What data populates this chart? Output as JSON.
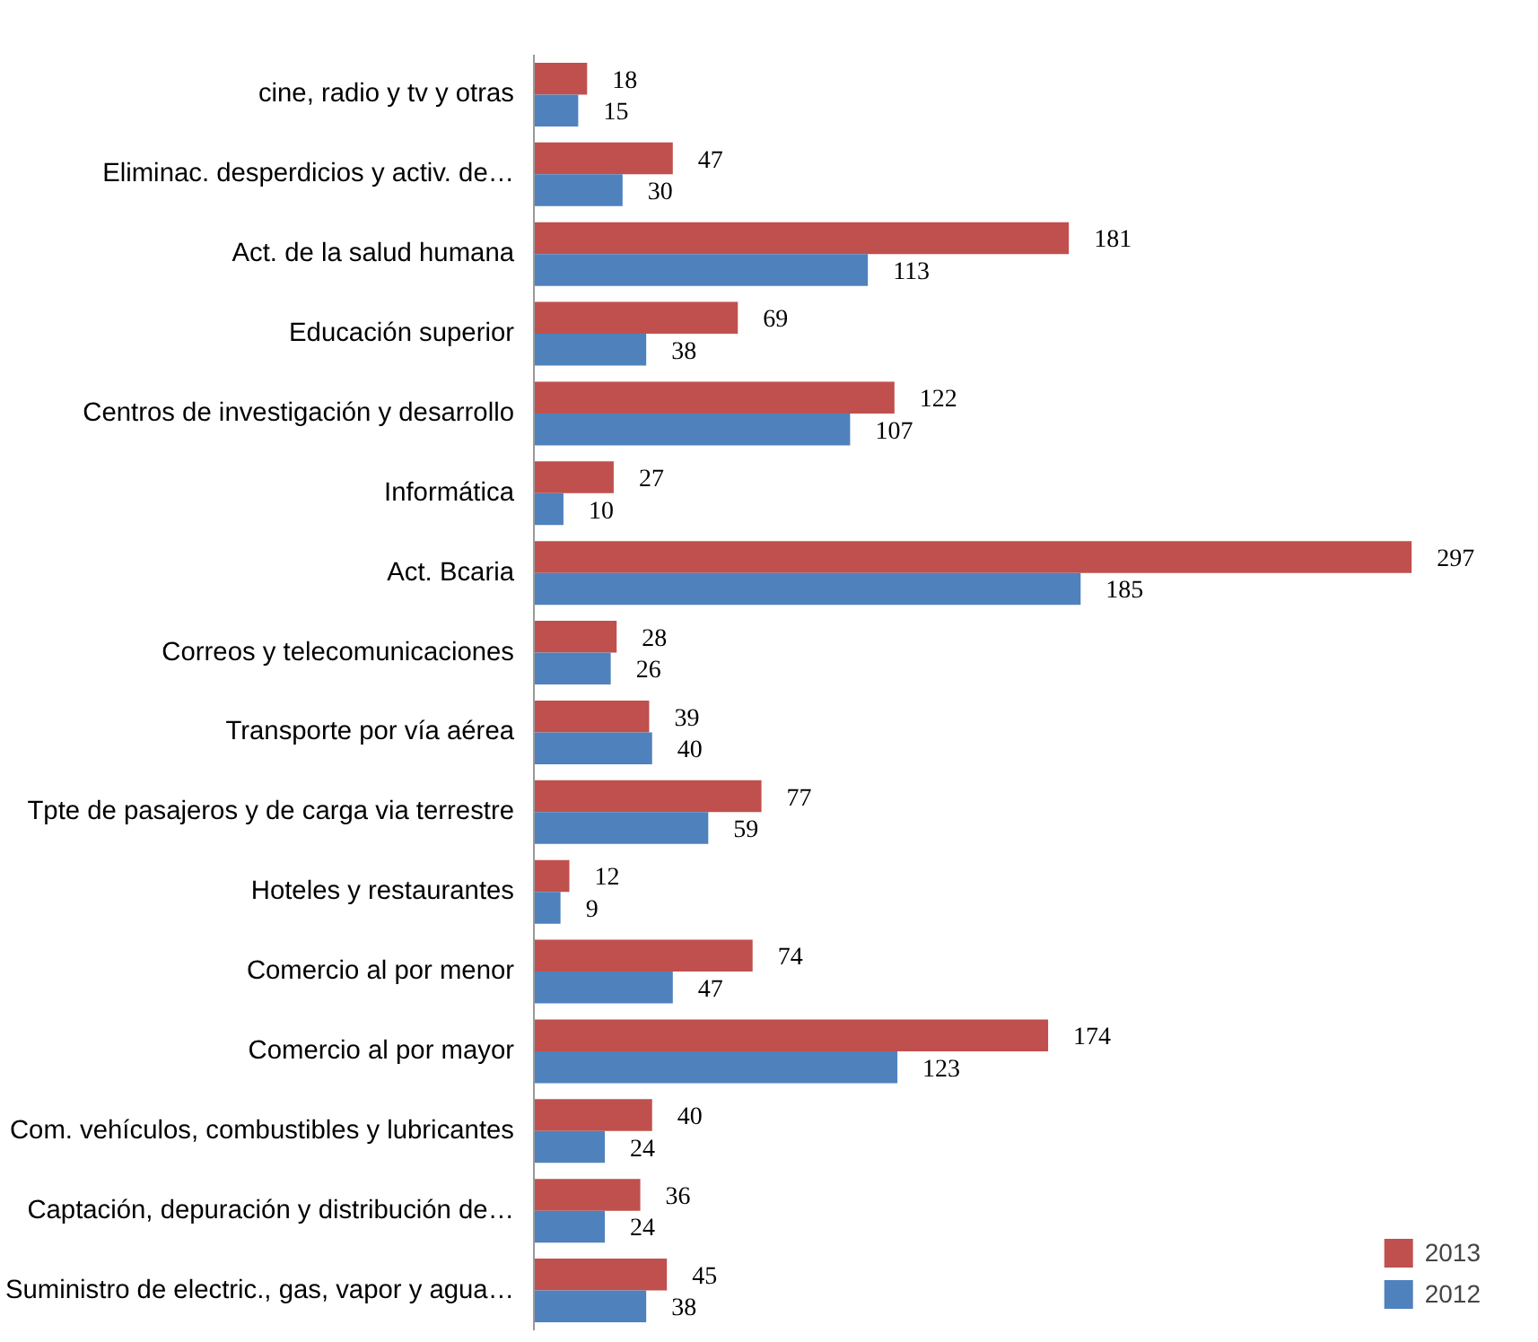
{
  "chart_data": {
    "type": "bar",
    "orientation": "horizontal",
    "categories": [
      "cine, radio y tv y otras",
      "Eliminac. desperdicios y activ. de…",
      "Act. de la salud humana",
      "Educación superior",
      "Centros de investigación y desarrollo",
      "Informática",
      "Act. Bcaria",
      "Correos y telecomunicaciones",
      "Transporte por vía aérea",
      "Tpte de pasajeros y de carga via terrestre",
      "Hoteles y restaurantes",
      "Comercio al por menor",
      "Comercio al por mayor",
      "Com. vehículos, combustibles y lubricantes",
      "Captación, depuración y distribución de…",
      "Suministro de electric., gas, vapor y agua…"
    ],
    "series": [
      {
        "name": "2013",
        "color": "#c0504d",
        "values": [
          18,
          47,
          181,
          69,
          122,
          27,
          297,
          28,
          39,
          77,
          12,
          74,
          174,
          40,
          36,
          45
        ]
      },
      {
        "name": "2012",
        "color": "#4f81bd",
        "values": [
          15,
          30,
          113,
          38,
          107,
          10,
          185,
          26,
          40,
          59,
          9,
          47,
          123,
          24,
          24,
          38
        ]
      }
    ],
    "data_labels": true,
    "legend": "bottom right",
    "grid": false
  }
}
